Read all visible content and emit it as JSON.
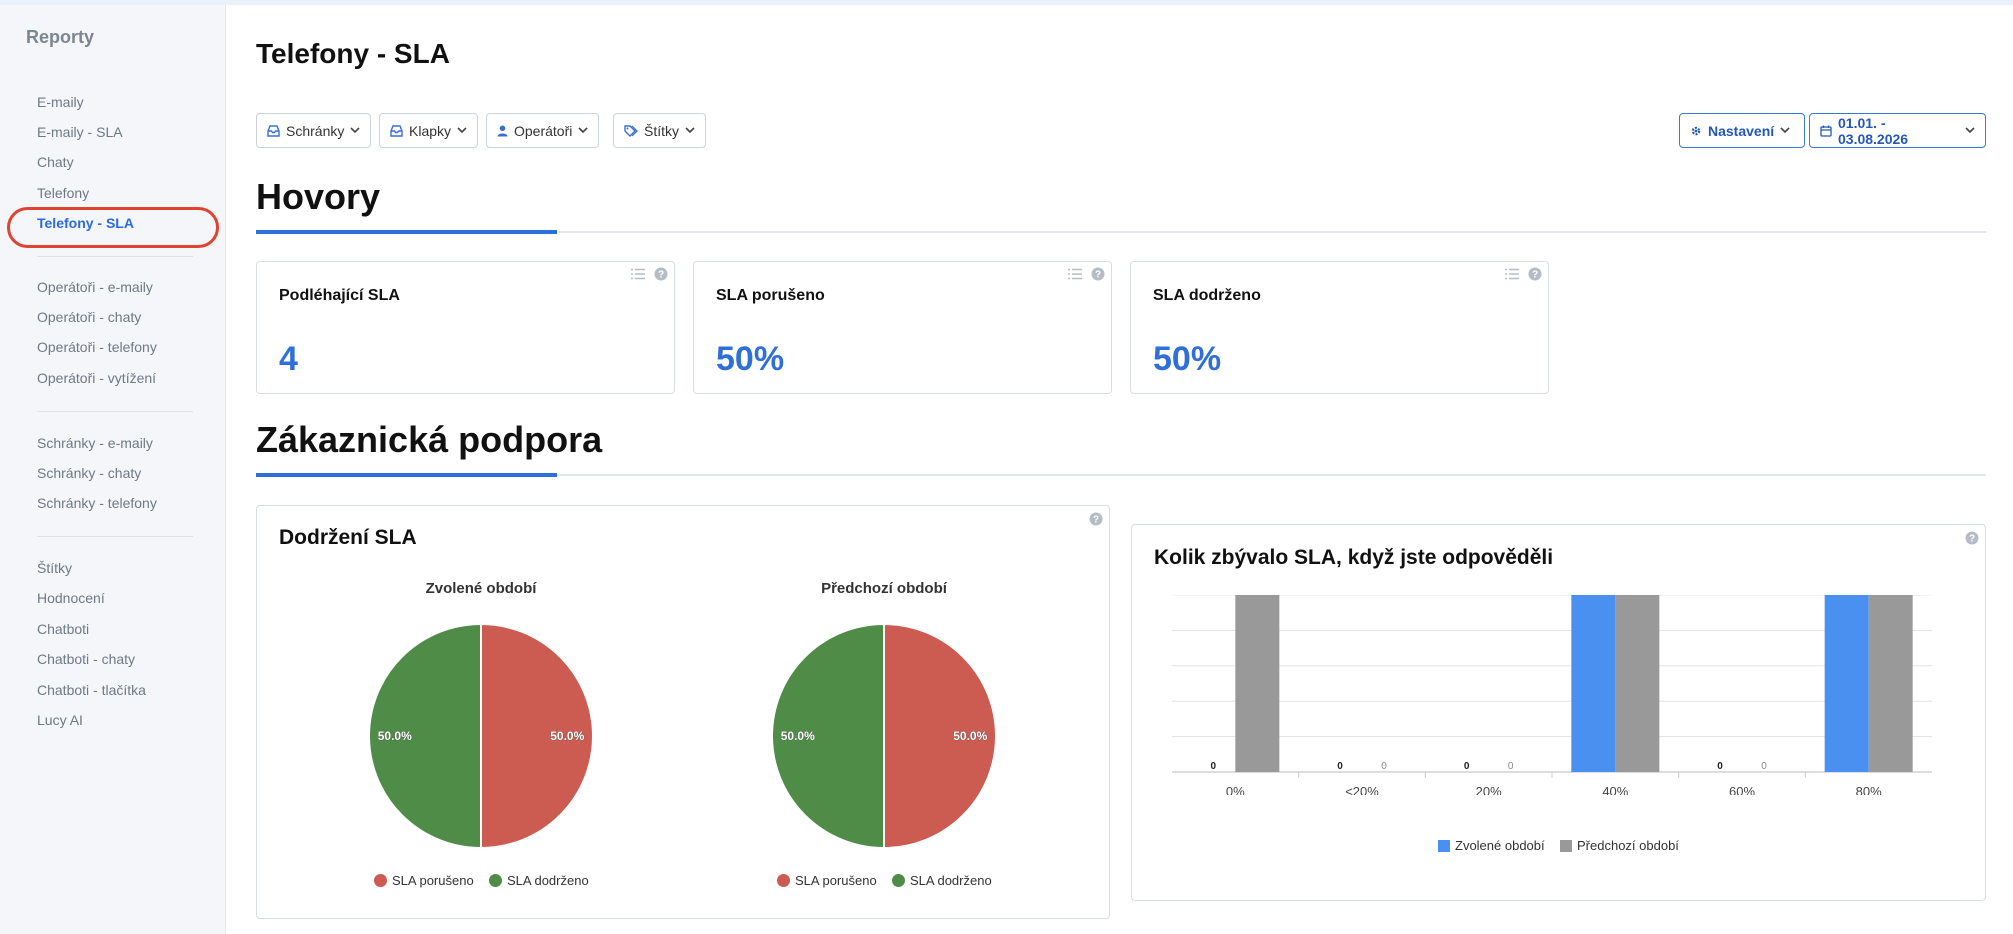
{
  "sidebar": {
    "title": "Reporty",
    "items": [
      {
        "label": "E-maily"
      },
      {
        "label": "E-maily - SLA"
      },
      {
        "label": "Chaty"
      },
      {
        "label": "Telefony"
      },
      {
        "label": "Telefony - SLA",
        "active": true
      },
      {
        "label": "Operátoři - e-maily"
      },
      {
        "label": "Operátoři - chaty"
      },
      {
        "label": "Operátoři - telefony"
      },
      {
        "label": "Operátoři - vytížení"
      },
      {
        "label": "Schránky - e-maily"
      },
      {
        "label": "Schránky - chaty"
      },
      {
        "label": "Schránky - telefony"
      },
      {
        "label": "Štítky"
      },
      {
        "label": "Hodnocení"
      },
      {
        "label": "Chatboti"
      },
      {
        "label": "Chatboti - chaty"
      },
      {
        "label": "Chatboti - tlačítka"
      },
      {
        "label": "Lucy AI"
      }
    ]
  },
  "page": {
    "title": "Telefony - SLA"
  },
  "filters": {
    "schranky": "Schránky",
    "klapky": "Klapky",
    "operatori": "Operátoři",
    "stitky": "Štítky",
    "settings": "Nastavení",
    "date_range": "01.01. - 03.08.2026"
  },
  "sections": {
    "hovory": "Hovory",
    "podpora": "Zákaznická podpora"
  },
  "stats": [
    {
      "label": "Podléhající SLA",
      "value": "4"
    },
    {
      "label": "SLA porušeno",
      "value": "50%"
    },
    {
      "label": "SLA dodrženo",
      "value": "50%"
    }
  ],
  "colors": {
    "accent": "#2f6fd8",
    "violated": "#cc5b52",
    "kept": "#4e8c47",
    "current_bar": "#4a90f0",
    "previous_bar": "#999999"
  },
  "icons": [
    "inbox-icon",
    "inbox-icon",
    "user-icon",
    "tags-icon",
    "gear-icon",
    "calendar-icon",
    "chevron-down-icon",
    "list-icon",
    "help-icon"
  ],
  "sla_panel": {
    "title": "Dodržení SLA",
    "legend_violated": "SLA porušeno",
    "legend_kept": "SLA dodrženo"
  },
  "bar_panel": {
    "title": "Kolik zbývalo SLA, když jste odpověděli"
  },
  "chart_data": [
    {
      "type": "pie",
      "title": "Zvolené období",
      "slices": [
        {
          "label": "SLA porušeno",
          "value": 50.0,
          "display": "50.0%"
        },
        {
          "label": "SLA dodrženo",
          "value": 50.0,
          "display": "50.0%"
        }
      ]
    },
    {
      "type": "pie",
      "title": "Předchozí období",
      "slices": [
        {
          "label": "SLA porušeno",
          "value": 50.0,
          "display": "50.0%"
        },
        {
          "label": "SLA dodrženo",
          "value": 50.0,
          "display": "50.0%"
        }
      ]
    },
    {
      "type": "bar",
      "title": "Kolik zbývalo SLA, když jste odpověděli",
      "categories": [
        "0%",
        "<20%",
        "20%",
        "40%",
        "60%",
        "80%"
      ],
      "series": [
        {
          "name": "Zvolené období",
          "values": [
            0,
            0,
            0,
            1,
            0,
            1
          ]
        },
        {
          "name": "Předchozí období",
          "values": [
            1,
            0,
            0,
            1,
            0,
            1
          ]
        }
      ],
      "ylim": [
        0,
        1
      ],
      "grid": true,
      "legend": "bottom"
    }
  ]
}
